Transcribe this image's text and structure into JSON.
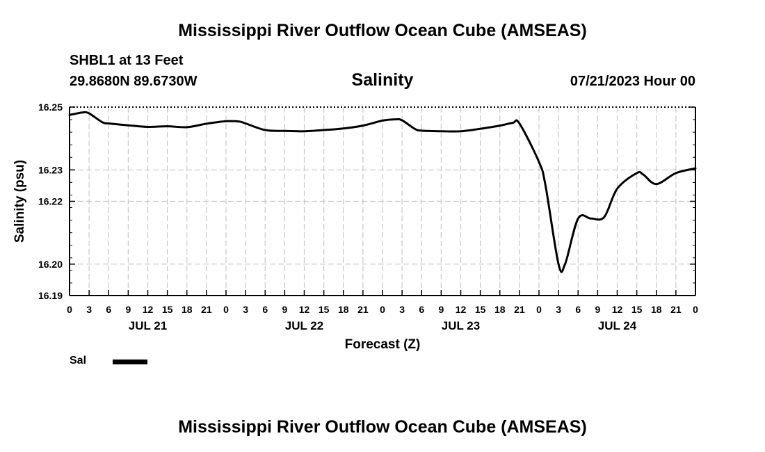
{
  "header": {
    "title": "Mississippi River Outflow Ocean Cube (AMSEAS)",
    "station": "SHBL1 at 13 Feet",
    "coords": "29.8680N  89.6730W",
    "variable": "Salinity",
    "datetime": "07/21/2023 Hour 00"
  },
  "footer": {
    "title": "Mississippi River Outflow Ocean Cube (AMSEAS)"
  },
  "legend": {
    "label": "Sal"
  },
  "colors": {
    "line": "#000000",
    "grid": "#c8c8c8",
    "axis": "#000000"
  },
  "chart_data": {
    "type": "line",
    "title": "Salinity",
    "xlabel": "Forecast (Z)",
    "ylabel": "Salinity (psu)",
    "x_unit": "forecast hour",
    "xlim": [
      0,
      96
    ],
    "ylim": [
      16.19,
      16.25
    ],
    "yticks": [
      16.19,
      16.2,
      16.22,
      16.23,
      16.25
    ],
    "y_gridlines": [
      16.2,
      16.22,
      16.23,
      16.25
    ],
    "x_tick_labels": [
      "0",
      "3",
      "6",
      "9",
      "12",
      "15",
      "18",
      "21",
      "0",
      "3",
      "6",
      "9",
      "12",
      "15",
      "18",
      "21",
      "0",
      "3",
      "6",
      "9",
      "12",
      "15",
      "18",
      "21",
      "0",
      "3",
      "6",
      "9",
      "12",
      "15",
      "18",
      "21",
      "0"
    ],
    "x_tick_step_hours": 3,
    "day_labels": [
      {
        "label": "JUL 21",
        "hour": 12
      },
      {
        "label": "JUL 22",
        "hour": 36
      },
      {
        "label": "JUL 23",
        "hour": 60
      },
      {
        "label": "JUL 24",
        "hour": 84
      }
    ],
    "grid": true,
    "legend_position": "bottom-left",
    "series": [
      {
        "name": "Sal",
        "x": [
          0,
          2,
          3,
          5,
          6,
          9,
          12,
          15,
          18,
          21,
          24,
          26,
          27,
          30,
          33,
          36,
          39,
          42,
          45,
          48,
          50,
          51,
          53,
          54,
          57,
          60,
          63,
          66,
          68,
          69,
          72,
          73,
          75,
          76,
          78,
          80,
          82,
          84,
          87,
          88,
          90,
          93,
          96
        ],
        "values": [
          16.2475,
          16.2483,
          16.248,
          16.2452,
          16.2448,
          16.2442,
          16.2437,
          16.2439,
          16.2436,
          16.2447,
          16.2455,
          16.2454,
          16.2448,
          16.2427,
          16.2424,
          16.2423,
          16.2427,
          16.2432,
          16.2441,
          16.2457,
          16.2461,
          16.2458,
          16.243,
          16.2425,
          16.2423,
          16.2423,
          16.2431,
          16.2441,
          16.245,
          16.2448,
          16.2325,
          16.225,
          16.2,
          16.2,
          16.2145,
          16.2145,
          16.215,
          16.224,
          16.229,
          16.2285,
          16.2255,
          16.229,
          16.2305
        ]
      }
    ]
  }
}
